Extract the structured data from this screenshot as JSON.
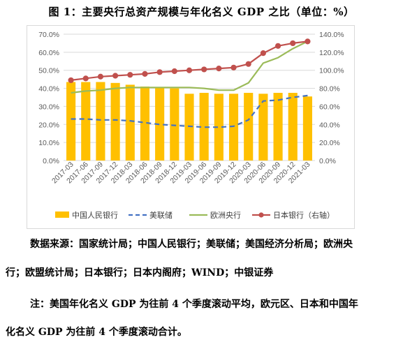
{
  "title": "图 1：主要央行总资产规模与年化名义 GDP 之比（单位：%）",
  "chart_data": {
    "type": "bar+line",
    "categories": [
      "2017-03",
      "2017-06",
      "2017-09",
      "2017-12",
      "2018-03",
      "2018-06",
      "2018-09",
      "2018-12",
      "2019-03",
      "2019-06",
      "2019-09",
      "2019-12",
      "2020-03",
      "2020-06",
      "2020-09",
      "2020-12",
      "2021-03"
    ],
    "left_axis": {
      "min": 0,
      "max": 70,
      "step": 10,
      "ticks": [
        "0.0%",
        "10.0%",
        "20.0%",
        "30.0%",
        "40.0%",
        "50.0%",
        "60.0%",
        "70.0%"
      ]
    },
    "right_axis": {
      "min": 0,
      "max": 140,
      "step": 20,
      "ticks": [
        "0.0%",
        "20.0%",
        "40.0%",
        "60.0%",
        "80.0%",
        "100.0%",
        "120.0%",
        "140.0%"
      ]
    },
    "series": [
      {
        "name": "中国人民银行",
        "kind": "bar",
        "axis": "left",
        "color": "#ffc000",
        "values": [
          43.5,
          43.5,
          43.5,
          43.0,
          42.0,
          41.0,
          40.5,
          40.0,
          37.0,
          37.5,
          37.0,
          37.0,
          37.5,
          37.0,
          37.5,
          37.5,
          35.5
        ]
      },
      {
        "name": "美联储",
        "kind": "dashed-line",
        "axis": "left",
        "color": "#4472c4",
        "values": [
          23.0,
          23.0,
          22.5,
          22.5,
          22.0,
          21.0,
          20.0,
          19.5,
          19.0,
          18.5,
          18.5,
          19.0,
          22.5,
          33.0,
          33.5,
          35.0,
          36.0
        ]
      },
      {
        "name": "欧洲央行",
        "kind": "line",
        "axis": "left",
        "color": "#9bbb59",
        "values": [
          37.5,
          38.5,
          39.0,
          40.0,
          40.5,
          40.5,
          40.5,
          40.5,
          40.5,
          40.0,
          39.0,
          39.0,
          43.0,
          54.0,
          57.0,
          62.0,
          66.0
        ]
      },
      {
        "name": "日本银行（右轴）",
        "kind": "line-marker",
        "axis": "right",
        "color": "#c0504d",
        "values": [
          89,
          91,
          93,
          94,
          95,
          96,
          98,
          99,
          100,
          101,
          102,
          103,
          107,
          119,
          127,
          130,
          132
        ]
      }
    ],
    "legend_position": "bottom",
    "grid": "horizontal"
  },
  "source_line1": "数据来源：国家统计局；中国人民银行；美联储；美国经济分析局；欧洲央",
  "source_line2": "行；欧盟统计局；日本银行；日本内阁府；WIND；中银证券",
  "note_line1": "注：美国年化名义 GDP 为往前 4 个季度滚动平均，欧元区、日本和中国年",
  "note_line2": "化名义 GDP 为往前 4 个季度滚动合计。"
}
